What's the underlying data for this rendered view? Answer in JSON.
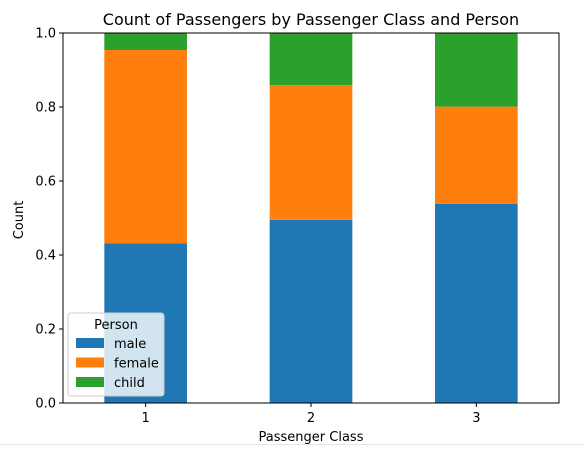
{
  "chart_data": {
    "type": "bar",
    "stacked": true,
    "title": "Count of Passengers by Passenger Class and Person",
    "xlabel": "Passenger Class",
    "ylabel": "Count",
    "categories": [
      "1",
      "2",
      "3"
    ],
    "series": [
      {
        "name": "male",
        "color": "#1f77b4",
        "values": [
          0.431,
          0.495,
          0.538
        ]
      },
      {
        "name": "female",
        "color": "#ff7f0e",
        "values": [
          0.523,
          0.364,
          0.263
        ]
      },
      {
        "name": "child",
        "color": "#2ca02c",
        "values": [
          0.046,
          0.141,
          0.199
        ]
      }
    ],
    "ylim": [
      0,
      1.0
    ],
    "yticks": [
      "0.0",
      "0.2",
      "0.4",
      "0.6",
      "0.8",
      "1.0"
    ],
    "grid": false,
    "legend": {
      "title": "Person",
      "placement": "lower-left"
    }
  }
}
